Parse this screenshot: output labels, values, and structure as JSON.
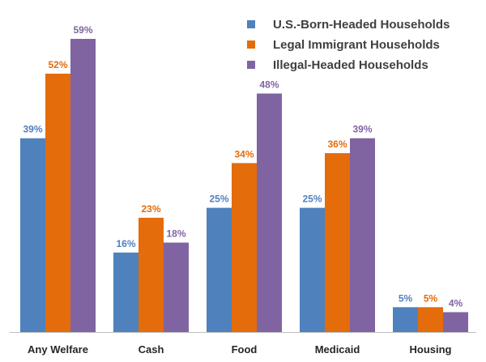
{
  "chart_data": {
    "type": "bar",
    "title": "",
    "xlabel": "",
    "ylabel": "",
    "ylim": [
      0,
      60
    ],
    "grid": false,
    "legend_position": "top-right",
    "categories": [
      "Any Welfare",
      "Cash",
      "Food",
      "Medicaid",
      "Housing"
    ],
    "series": [
      {
        "name": "U.S.-Born-Headed Households",
        "color": "#4f81bd",
        "values": [
          39,
          16,
          25,
          25,
          5
        ],
        "labels": [
          "39%",
          "16%",
          "25%",
          "25%",
          "5%"
        ]
      },
      {
        "name": "Legal Immigrant Households",
        "color": "#e46c0a",
        "values": [
          52,
          23,
          34,
          36,
          5
        ],
        "labels": [
          "52%",
          "23%",
          "34%",
          "36%",
          "5%"
        ]
      },
      {
        "name": "Illegal-Headed Households",
        "color": "#8064a2",
        "values": [
          59,
          18,
          48,
          39,
          4
        ],
        "labels": [
          "59%",
          "18%",
          "48%",
          "39%",
          "4%"
        ]
      }
    ]
  }
}
